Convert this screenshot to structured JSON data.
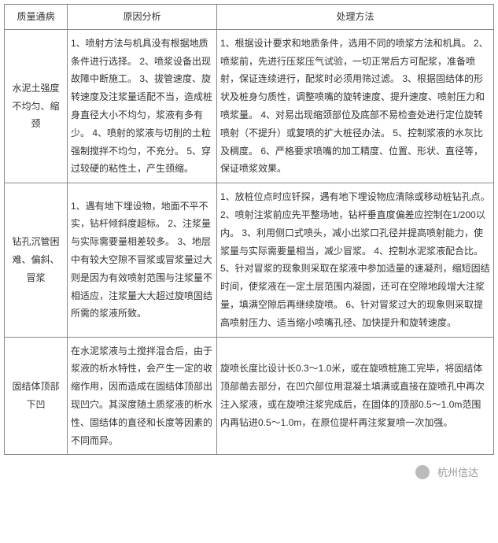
{
  "table": {
    "headers": [
      "质量通病",
      "原因分析",
      "处理方法"
    ],
    "rows": [
      {
        "problem": "水泥土强度不均匀、缩颈",
        "cause": "1、喷射方法与机具没有根据地质条件进行选择。\n2、喷浆设备出现故障中断施工。\n3、拔管速度、旋转速度及注浆量适配不当，造成桩身直径大小不均匀，浆液有多有少。\n4、喷射的浆液与切削的土粒强制搅拌不均匀，不充分。\n5、穿过较硬的粘性土，产生颈缩。",
        "solution": "1、根据设计要求和地质条件，选用不同的喷浆方法和机具。\n2、喷浆前，先进行压浆压气试验，一切正常后方可配浆，准备喷射，保证连续进行，配浆时必须用筛过滤。\n3、根据固结体的形状及桩身匀质性，调整喷嘴的旋转速度、提升速度、喷射压力和喷浆量。\n4、对易出现缩颈部位及底部不易检查处进行定位旋转喷射（不提升）或复喷的扩大桩径办法。\n5、控制浆液的水灰比及稠度。\n6、严格要求喷嘴的加工精度、位置、形状、直径等，保证喷浆效果。"
      },
      {
        "problem": "钻孔沉管困难、偏斜、冒浆",
        "cause": "1、遇有地下埋设物，地面不平不实，钻杆倾斜度超标。\n2、注浆量与实际需要量相差较多。\n3、地层中有较大空隙不冒浆或冒浆量过大则是因为有效喷射范围与注浆量不相适应，注浆量大大超过旋喷固结所需的浆液所致。",
        "solution": "1、放桩位点时应钎探，遇有地下埋设物应清除或移动桩钻孔点。\n2、喷射注浆前应先平整场地，钻杆垂直度偏差应控制在1/200以内。\n3、利用侧口式喷头，减小出浆口孔径并提高喷射能力，使浆量与实际需要量相当，减少冒浆。\n4、控制水泥浆液配合比。\n5、针对冒浆的现象则采取在浆液中参加适量的速凝剂，缩短固结时间，使浆液在一定土层范围内凝固，还可在空隙地段增大注浆量，填满空隙后再继续旋喷。\n6、针对冒浆过大的现象则采取提高喷射压力、适当缩小喷嘴孔径、加快提升和旋转速度。"
      },
      {
        "problem": "固结体顶部下凹",
        "cause": "在水泥浆液与土搅拌混合后，由于浆液的析水特性，会产生一定的收缩作用，因而造成在固结体顶部出现凹穴。其深度随土质浆液的析水性、固结体的直径和长度等因素的不同而异。",
        "solution": "旋喷长度比设计长0.3～1.0米，或在旋喷桩施工完毕，将固结体顶部凿去部分，在凹穴部位用混凝土填满或直接在旋喷孔中再次注入浆液，或在旋喷注浆完成后，在固体的顶部0.5～1.0m范围内再钻进0.5～1.0m，在原位提杆再注浆复喷一次加强。"
      }
    ]
  },
  "footer": {
    "label": "杭州信达"
  }
}
